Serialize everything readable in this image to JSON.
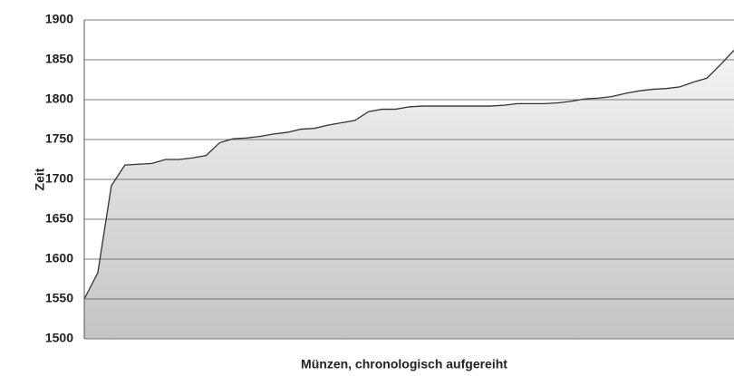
{
  "chart_data": {
    "type": "area",
    "x_label": "Münzen, chronologisch aufgereiht",
    "y_label": "Zeit",
    "categories": [
      null,
      null,
      null,
      null,
      null,
      null,
      null,
      null,
      null,
      null,
      null,
      null,
      null,
      null,
      null,
      null,
      null,
      null,
      null,
      null,
      null,
      null,
      null,
      null,
      null,
      null,
      null,
      null,
      null,
      null,
      null,
      null,
      null,
      null,
      null,
      null,
      null,
      null,
      null,
      null,
      null,
      null,
      null,
      null,
      null,
      null,
      null,
      null,
      null
    ],
    "values": [
      1550,
      1583,
      1692,
      1718,
      1719,
      1720,
      1725,
      1725,
      1727,
      1730,
      1746,
      1751,
      1752,
      1754,
      1757,
      1759,
      1763,
      1764,
      1768,
      1771,
      1774,
      1785,
      1788,
      1788,
      1791,
      1792,
      1792,
      1792,
      1792,
      1792,
      1792,
      1793,
      1795,
      1795,
      1795,
      1796,
      1798,
      1801,
      1802,
      1804,
      1808,
      1811,
      1813,
      1814,
      1816,
      1822,
      1827,
      1844,
      1862
    ],
    "color": "#333333",
    "ylim": [
      1500,
      1900
    ],
    "yticks": [
      1500,
      1550,
      1600,
      1650,
      1700,
      1750,
      1800,
      1850,
      1900
    ],
    "grid": true
  }
}
